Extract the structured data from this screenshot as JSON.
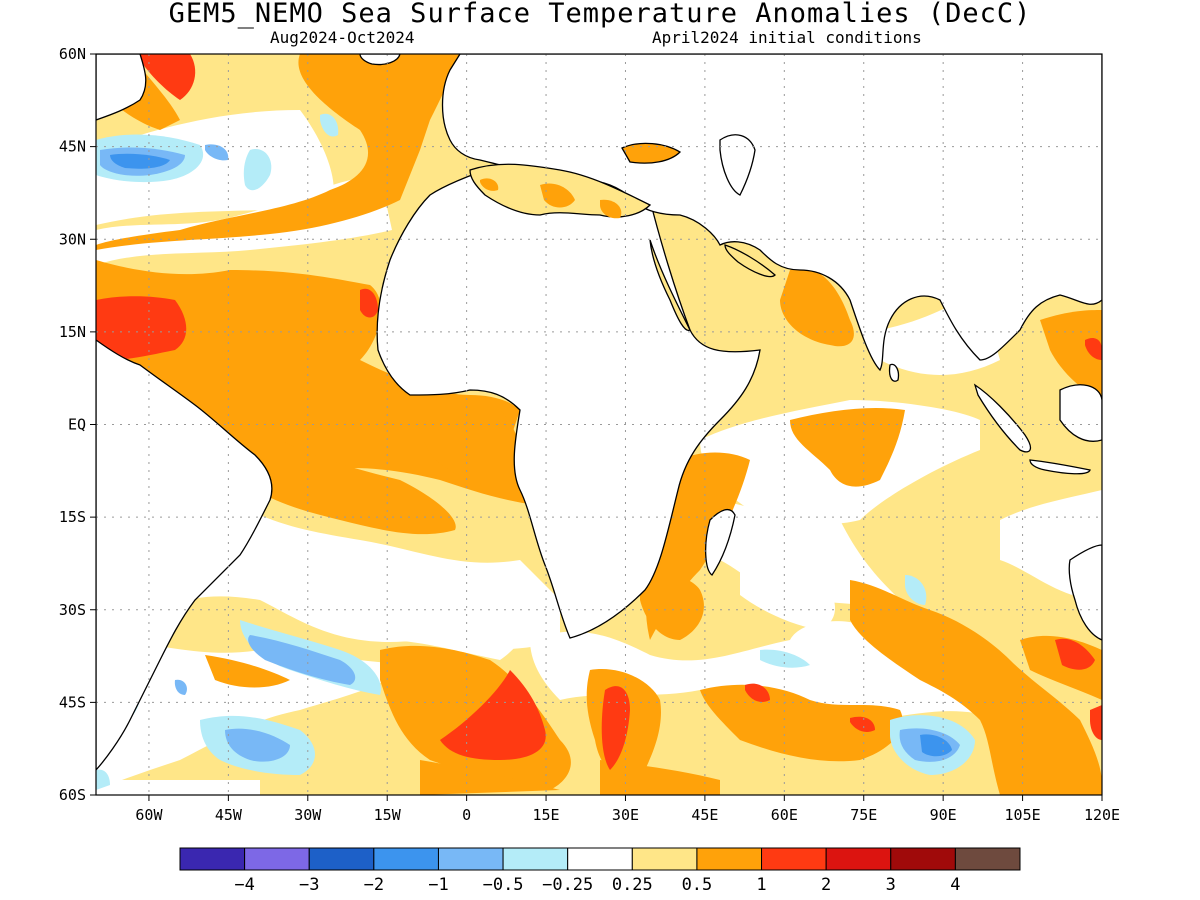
{
  "title": "GEM5_NEMO Sea Surface Temperature Anomalies (DecC)",
  "subtitle_left": "Aug2024-Oct2024",
  "subtitle_right": "April2024 initial conditions",
  "map": {
    "type": "filled-contour",
    "lon_range": [
      -70,
      120
    ],
    "lat_range": [
      -60,
      60
    ],
    "gridlines": "dotted",
    "lat_ticks": [
      {
        "value": 60,
        "label": "60N"
      },
      {
        "value": 45,
        "label": "45N"
      },
      {
        "value": 30,
        "label": "30N"
      },
      {
        "value": 15,
        "label": "15N"
      },
      {
        "value": 0,
        "label": "EQ"
      },
      {
        "value": -15,
        "label": "15S"
      },
      {
        "value": -30,
        "label": "30S"
      },
      {
        "value": -45,
        "label": "45S"
      },
      {
        "value": -60,
        "label": "60S"
      }
    ],
    "lon_ticks": [
      {
        "value": -60,
        "label": "60W"
      },
      {
        "value": -45,
        "label": "45W"
      },
      {
        "value": -30,
        "label": "30W"
      },
      {
        "value": -15,
        "label": "15W"
      },
      {
        "value": 0,
        "label": "0"
      },
      {
        "value": 15,
        "label": "15E"
      },
      {
        "value": 30,
        "label": "30E"
      },
      {
        "value": 45,
        "label": "45E"
      },
      {
        "value": 60,
        "label": "60E"
      },
      {
        "value": 75,
        "label": "75E"
      },
      {
        "value": 90,
        "label": "90E"
      },
      {
        "value": 105,
        "label": "105E"
      },
      {
        "value": 120,
        "label": "120E"
      }
    ]
  },
  "colorbar": {
    "colors": [
      "#3a27b0",
      "#7d68e6",
      "#1d60c8",
      "#3c94ee",
      "#78b8f6",
      "#b4ecf8",
      "#ffffff",
      "#ffe688",
      "#ffa20a",
      "#ff3a12",
      "#dc1410",
      "#a00a0a",
      "#6e4a3e"
    ],
    "labels": [
      "−4",
      "−3",
      "−2",
      "−1",
      "−0.5",
      "−0.25",
      "0.25",
      "0.5",
      "1",
      "2",
      "3",
      "4"
    ]
  },
  "colors": {
    "land_outline": "#000000",
    "grid": "#9a9a9a"
  }
}
